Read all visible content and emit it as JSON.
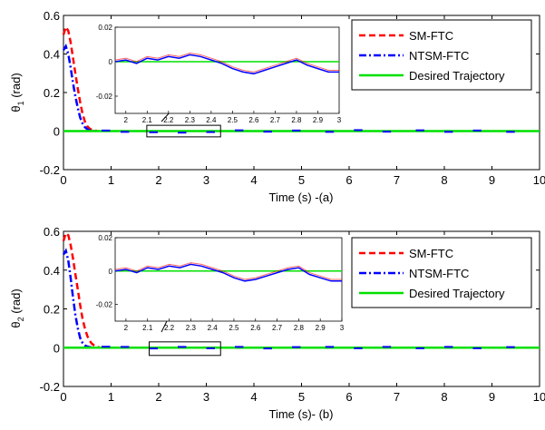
{
  "colors": {
    "sm": "#ff0000",
    "ntsm": "#0000ff",
    "desired": "#00e000",
    "inset_series": "#4b00a6"
  },
  "chart_data": [
    {
      "type": "line",
      "xlabel": "Time (s) -(a)",
      "ylabel_base": "θ",
      "ylabel_sub": "1",
      "ylabel_tail": " (rad)",
      "xlim": [
        0,
        10
      ],
      "ylim": [
        -0.2,
        0.6
      ],
      "xticks": [
        0,
        1,
        2,
        3,
        4,
        5,
        6,
        7,
        8,
        9,
        10
      ],
      "xtick_labels": [
        "0",
        "1",
        "2",
        "3",
        "4",
        "5",
        "6",
        "7",
        "8",
        "9",
        "10"
      ],
      "yticks": [
        -0.2,
        0,
        0.2,
        0.4,
        0.6
      ],
      "ytick_labels": [
        "-0.2",
        "0",
        "0.2",
        "0.4",
        "0.6"
      ],
      "legend": {
        "placement": "top-right",
        "entries": [
          {
            "label": "SM-FTC",
            "series": "sm"
          },
          {
            "label": "NTSM-FTC",
            "series": "ntsm"
          },
          {
            "label": "Desired Trajectory",
            "series": "desired"
          }
        ]
      },
      "series": [
        {
          "name": "SM-FTC",
          "key": "sm",
          "style": "dashed",
          "x": [
            0,
            0.05,
            0.1,
            0.15,
            0.2,
            0.25,
            0.3,
            0.35,
            0.4,
            0.45,
            0.5,
            0.55,
            0.6,
            0.65,
            0.7
          ],
          "y": [
            0.5,
            0.54,
            0.52,
            0.46,
            0.38,
            0.3,
            0.22,
            0.15,
            0.09,
            0.05,
            0.025,
            0.012,
            0.006,
            0.003,
            0.002
          ]
        },
        {
          "name": "NTSM-FTC",
          "key": "ntsm",
          "style": "dashdot",
          "x": [
            0,
            0.05,
            0.1,
            0.15,
            0.2,
            0.25,
            0.3,
            0.35,
            0.4,
            0.45,
            0.5,
            0.55,
            0.6,
            0.65
          ],
          "y": [
            0.42,
            0.44,
            0.4,
            0.33,
            0.25,
            0.18,
            0.12,
            0.07,
            0.04,
            0.02,
            0.01,
            0.005,
            0.003,
            0.001
          ]
        },
        {
          "name": "Desired Trajectory",
          "key": "desired",
          "style": "solid",
          "x": [
            0,
            10
          ],
          "y": [
            0,
            0
          ]
        }
      ],
      "zoom_region": {
        "x": [
          1.75,
          3.3
        ],
        "y": [
          -0.03,
          0.03
        ]
      },
      "inset": {
        "xlim": [
          1.95,
          3.0
        ],
        "ylim": [
          -0.03,
          0.02
        ],
        "xticks": [
          2,
          2.1,
          2.2,
          2.3,
          2.4,
          2.5,
          2.6,
          2.7,
          2.8,
          2.9,
          3
        ],
        "xtick_labels": [
          "2",
          "2.1",
          "2.2",
          "2.3",
          "2.4",
          "2.5",
          "2.6",
          "2.7",
          "2.8",
          "2.9",
          "3"
        ],
        "yticks": [
          0.02,
          0,
          -0.02
        ],
        "ytick_labels": [
          "0.02",
          "0",
          "-0.02"
        ],
        "x": [
          1.95,
          2.0,
          2.05,
          2.1,
          2.15,
          2.2,
          2.25,
          2.3,
          2.35,
          2.4,
          2.45,
          2.5,
          2.55,
          2.6,
          2.65,
          2.7,
          2.75,
          2.8,
          2.85,
          2.9,
          2.95,
          3.0
        ],
        "y": [
          0,
          0.001,
          -0.001,
          0.002,
          0.001,
          0.003,
          0.002,
          0.004,
          0.003,
          0.001,
          -0.001,
          -0.004,
          -0.006,
          -0.007,
          -0.005,
          -0.003,
          -0.001,
          0.001,
          -0.002,
          -0.004,
          -0.006,
          -0.006
        ]
      },
      "noise": [
        [
          0.8,
          0.003
        ],
        [
          1.2,
          -0.004
        ],
        [
          1.8,
          -0.006
        ],
        [
          2.4,
          -0.008
        ],
        [
          3.0,
          -0.005
        ],
        [
          3.6,
          0.004
        ],
        [
          4.2,
          -0.003
        ],
        [
          4.8,
          0.003
        ],
        [
          5.5,
          -0.004
        ],
        [
          6.1,
          0.005
        ],
        [
          6.7,
          -0.003
        ],
        [
          7.4,
          0.004
        ],
        [
          8.0,
          -0.004
        ],
        [
          8.6,
          0.003
        ],
        [
          9.3,
          -0.004
        ]
      ]
    },
    {
      "type": "line",
      "xlabel": "Time (s)- (b)",
      "ylabel_base": "θ",
      "ylabel_sub": "2",
      "ylabel_tail": " (rad)",
      "xlim": [
        0,
        10
      ],
      "ylim": [
        -0.2,
        0.6
      ],
      "xticks": [
        0,
        1,
        2,
        3,
        4,
        5,
        6,
        7,
        8,
        9,
        10
      ],
      "xtick_labels": [
        "0",
        "1",
        "2",
        "3",
        "4",
        "5",
        "6",
        "7",
        "8",
        "9",
        "10"
      ],
      "yticks": [
        -0.2,
        0,
        0.2,
        0.4,
        0.6
      ],
      "ytick_labels": [
        "-0.2",
        "0",
        "0.2",
        "0.4",
        "0.6"
      ],
      "legend": {
        "placement": "top-right",
        "entries": [
          {
            "label": "SM-FTC",
            "series": "sm"
          },
          {
            "label": "NTSM-FTC",
            "series": "ntsm"
          },
          {
            "label": "Desired Trajectory",
            "series": "desired"
          }
        ]
      },
      "series": [
        {
          "name": "SM-FTC",
          "key": "sm",
          "style": "dashed",
          "x": [
            0,
            0.05,
            0.1,
            0.15,
            0.2,
            0.25,
            0.3,
            0.35,
            0.4,
            0.45,
            0.5,
            0.55,
            0.6,
            0.65,
            0.7,
            0.75
          ],
          "y": [
            0.55,
            0.59,
            0.58,
            0.53,
            0.46,
            0.38,
            0.3,
            0.22,
            0.15,
            0.1,
            0.06,
            0.035,
            0.02,
            0.01,
            0.005,
            0.002
          ]
        },
        {
          "name": "NTSM-FTC",
          "key": "ntsm",
          "style": "dashdot",
          "x": [
            0,
            0.05,
            0.1,
            0.15,
            0.2,
            0.25,
            0.3,
            0.35,
            0.4,
            0.45,
            0.5,
            0.55,
            0.6
          ],
          "y": [
            0.48,
            0.5,
            0.45,
            0.36,
            0.26,
            0.17,
            0.1,
            0.05,
            0.025,
            0.012,
            0.006,
            0.003,
            0.001
          ]
        },
        {
          "name": "Desired Trajectory",
          "key": "desired",
          "style": "solid",
          "x": [
            0,
            10
          ],
          "y": [
            0,
            0
          ]
        }
      ],
      "zoom_region": {
        "x": [
          1.8,
          3.3
        ],
        "y": [
          -0.04,
          0.03
        ]
      },
      "inset": {
        "xlim": [
          1.95,
          3.0
        ],
        "ylim": [
          -0.03,
          0.02
        ],
        "xticks": [
          2,
          2.1,
          2.2,
          2.3,
          2.4,
          2.5,
          2.6,
          2.7,
          2.8,
          2.9,
          3
        ],
        "xtick_labels": [
          "2",
          "2.1",
          "2.2",
          "2.3",
          "2.4",
          "2.5",
          "2.6",
          "2.7",
          "2.8",
          "2.9",
          "3"
        ],
        "yticks": [
          0.02,
          0,
          -0.02
        ],
        "ytick_labels": [
          "0.02",
          "0",
          "-0.02"
        ],
        "x": [
          1.95,
          2.0,
          2.05,
          2.1,
          2.15,
          2.2,
          2.25,
          2.3,
          2.35,
          2.4,
          2.45,
          2.5,
          2.55,
          2.6,
          2.65,
          2.7,
          2.75,
          2.8,
          2.85,
          2.9,
          2.95,
          3.0
        ],
        "y": [
          0,
          0.001,
          -0.001,
          0.002,
          0.001,
          0.003,
          0.002,
          0.004,
          0.003,
          0.001,
          -0.001,
          -0.004,
          -0.006,
          -0.005,
          -0.003,
          -0.001,
          0.001,
          0.002,
          -0.002,
          -0.004,
          -0.006,
          -0.006
        ]
      },
      "noise": [
        [
          0.8,
          0.005
        ],
        [
          1.2,
          0.004
        ],
        [
          1.8,
          -0.004
        ],
        [
          2.4,
          0.004
        ],
        [
          3.0,
          -0.003
        ],
        [
          3.6,
          0.004
        ],
        [
          4.2,
          -0.004
        ],
        [
          4.8,
          0.003
        ],
        [
          5.5,
          0.004
        ],
        [
          6.1,
          -0.003
        ],
        [
          6.7,
          0.004
        ],
        [
          7.4,
          -0.003
        ],
        [
          8.0,
          0.004
        ],
        [
          8.6,
          -0.003
        ],
        [
          9.3,
          0.003
        ]
      ]
    }
  ]
}
